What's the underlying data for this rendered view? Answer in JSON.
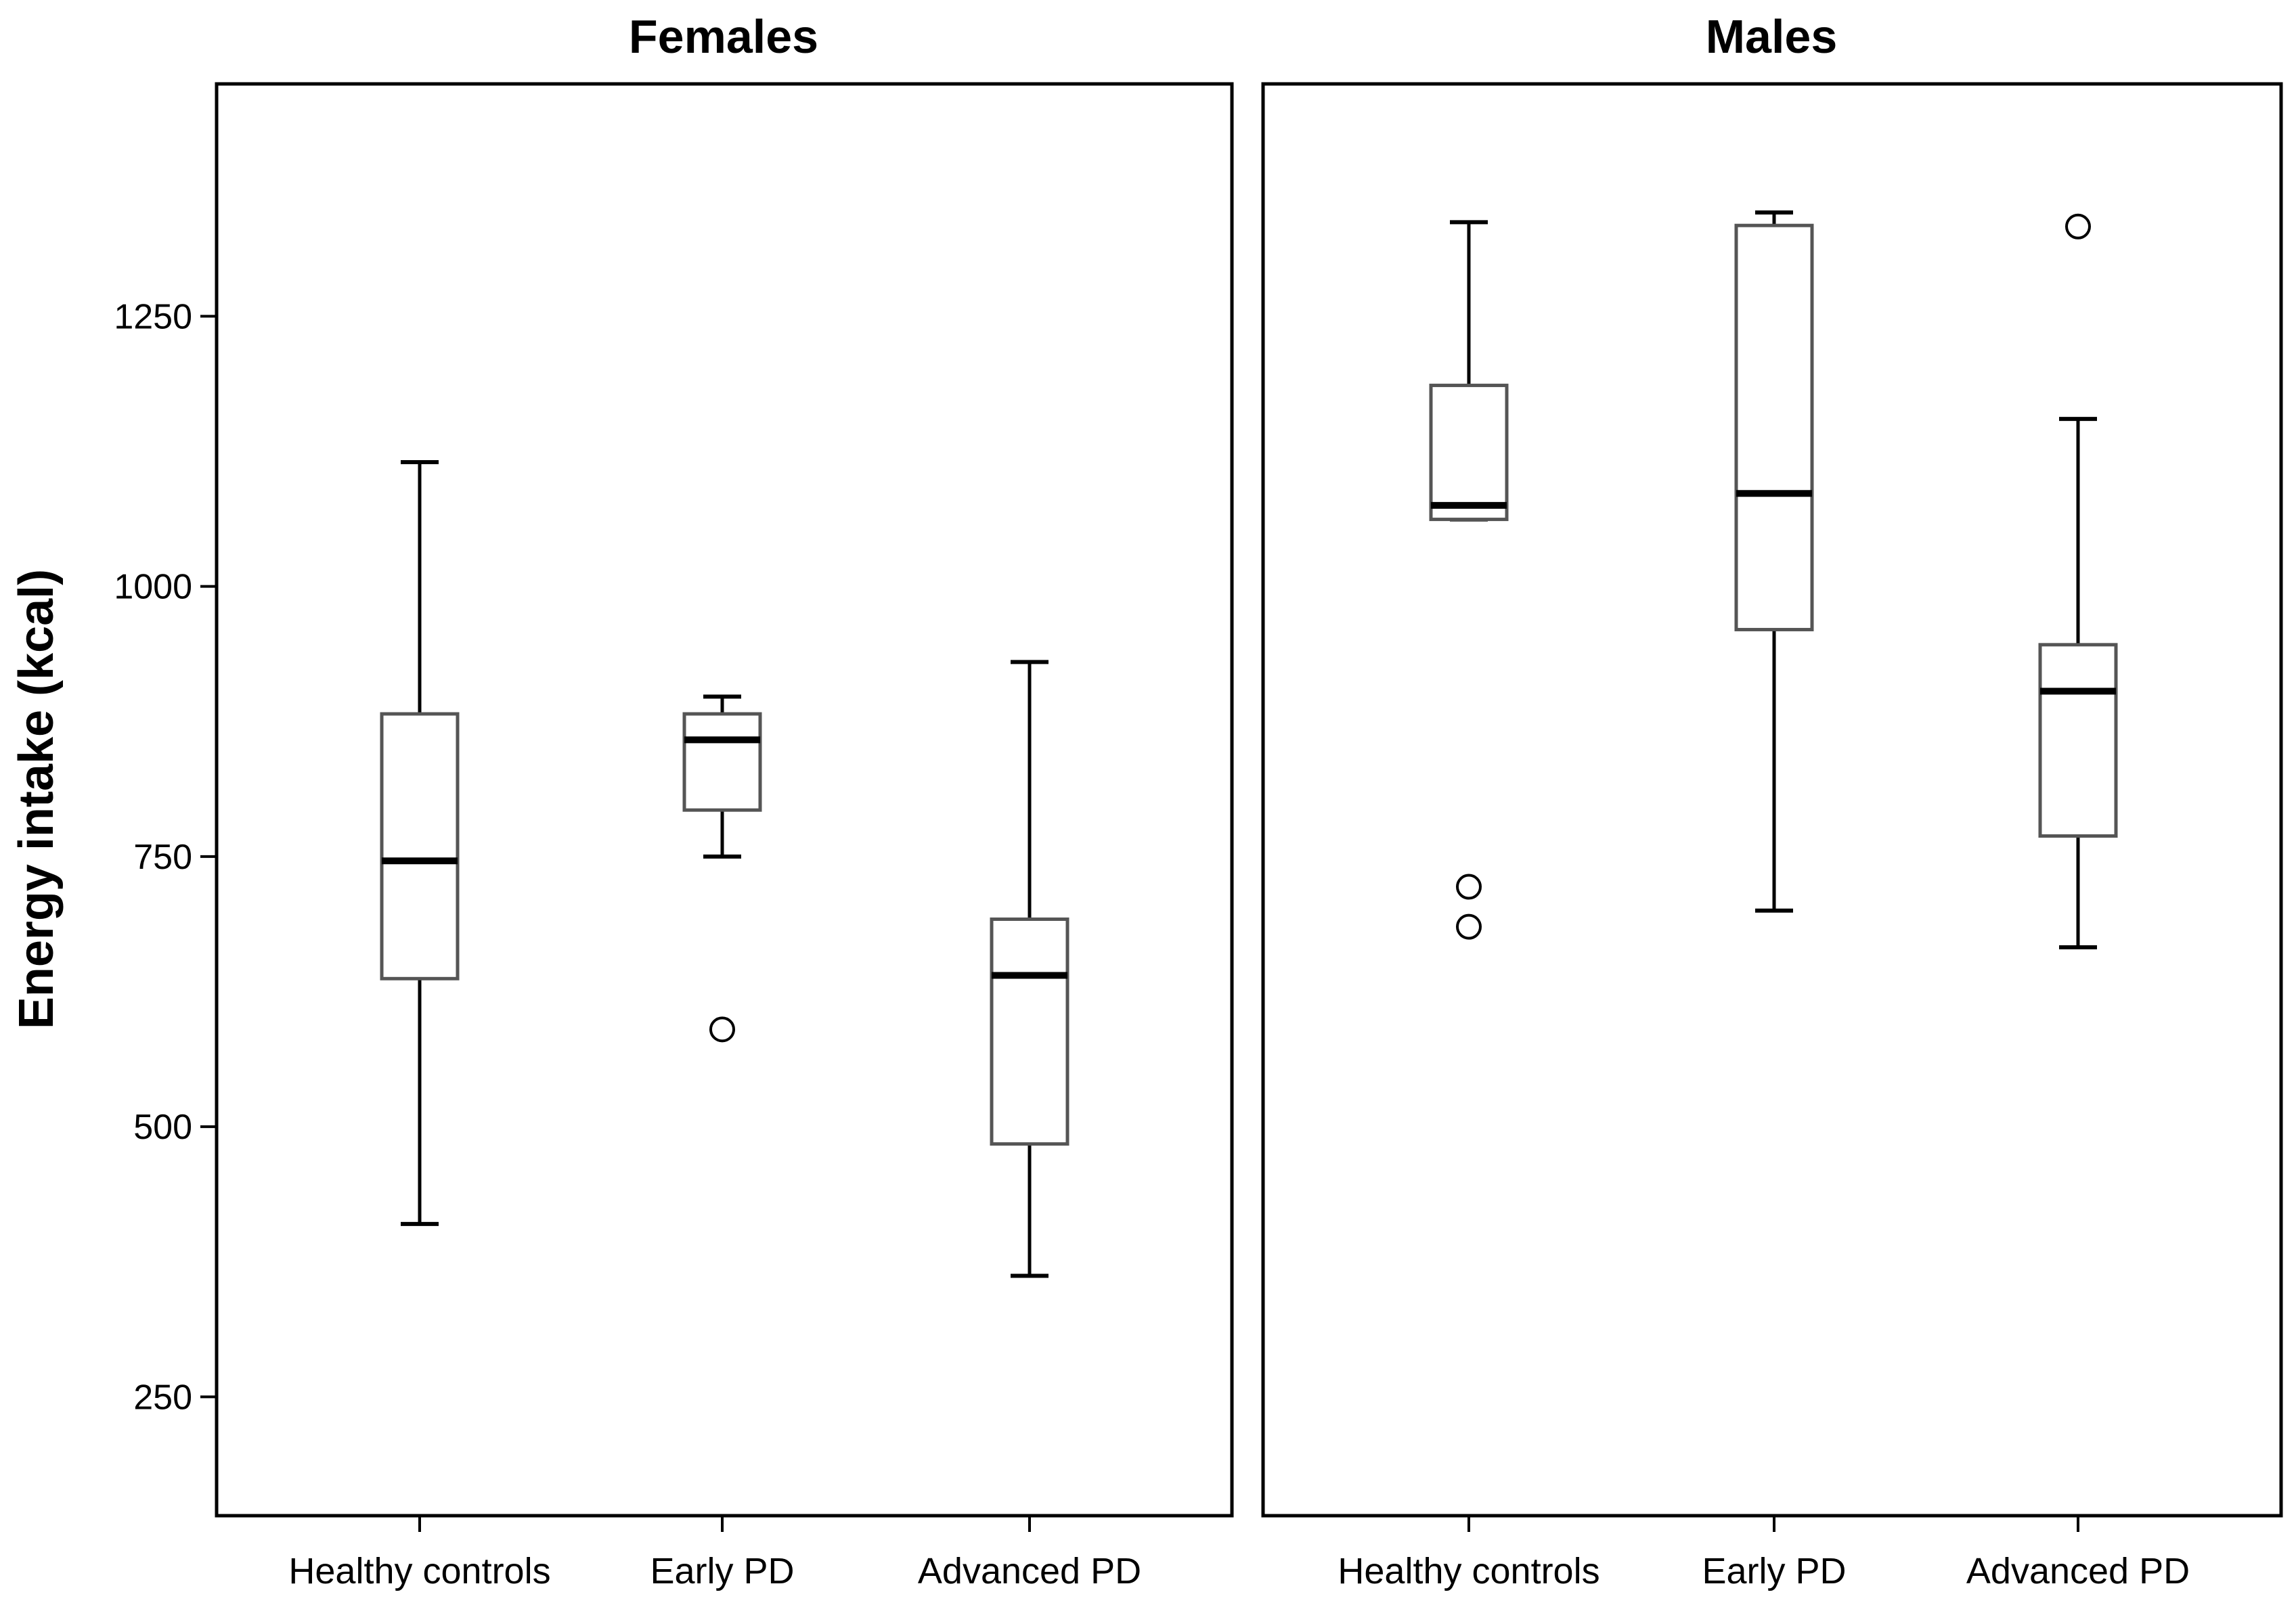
{
  "chart_data": {
    "type": "boxplot",
    "ylabel": "Energy intake (kcal)",
    "ylim": [
      140,
      1465
    ],
    "yticks": [
      250,
      500,
      750,
      1000,
      1250
    ],
    "categories": [
      "Healthy controls",
      "Early PD",
      "Advanced PD"
    ],
    "panels": [
      {
        "title": "Females",
        "boxes": [
          {
            "category": "Healthy controls",
            "whisker_low": 410,
            "q1": 637,
            "median": 746,
            "q3": 882,
            "whisker_high": 1115,
            "outliers": []
          },
          {
            "category": "Early PD",
            "whisker_low": 750,
            "q1": 793,
            "median": 858,
            "q3": 882,
            "whisker_high": 898,
            "outliers": [
              590
            ]
          },
          {
            "category": "Advanced PD",
            "whisker_low": 362,
            "q1": 484,
            "median": 640,
            "q3": 692,
            "whisker_high": 930,
            "outliers": []
          }
        ]
      },
      {
        "title": "Males",
        "boxes": [
          {
            "category": "Healthy controls",
            "whisker_low": 1062,
            "q1": 1062,
            "median": 1075,
            "q3": 1186,
            "whisker_high": 1337,
            "outliers": [
              722,
              685
            ]
          },
          {
            "category": "Early PD",
            "whisker_low": 700,
            "q1": 960,
            "median": 1086,
            "q3": 1334,
            "whisker_high": 1346,
            "outliers": []
          },
          {
            "category": "Advanced PD",
            "whisker_low": 666,
            "q1": 769,
            "median": 903,
            "q3": 946,
            "whisker_high": 1155,
            "outliers": [
              1333
            ]
          }
        ]
      }
    ]
  }
}
